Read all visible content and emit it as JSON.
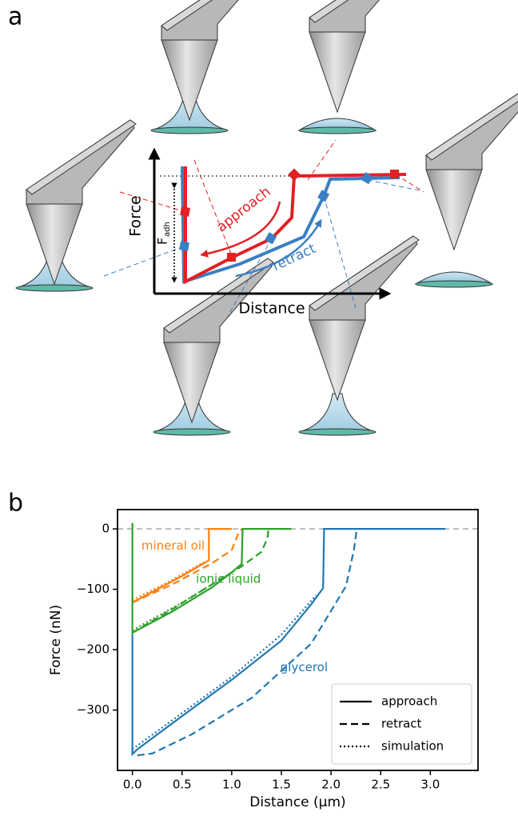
{
  "panel_a": {
    "label": "a",
    "y_axis": "Force",
    "x_axis": "Distance",
    "adhesion": {
      "symbol": "F",
      "subscript": "adh"
    },
    "approach": "approach",
    "retract": "retract"
  },
  "panel_b_label": "b",
  "chart_data": {
    "type": "line",
    "xlabel": "Distance (µm)",
    "ylabel": "Force (nN)",
    "xlim": [
      -0.15,
      3.48
    ],
    "ylim": [
      -400,
      32
    ],
    "xticks": [
      {
        "value": 0,
        "label": "0.0"
      },
      0.5,
      {
        "value": 1,
        "label": "1.0"
      },
      1.5,
      {
        "value": 2,
        "label": "2.0"
      },
      2.5,
      {
        "value": 3,
        "label": "3.0"
      }
    ],
    "yticks": [
      0,
      {
        "value": -100,
        "label": "−100"
      },
      {
        "value": -200,
        "label": "−200"
      },
      {
        "value": -300,
        "label": "−300"
      }
    ],
    "zero_line": true,
    "legend_position": "lower right",
    "styles": [
      {
        "name": "approach",
        "dash": "solid"
      },
      {
        "name": "retract",
        "dash": "dashed"
      },
      {
        "name": "simulation",
        "dash": "dotted"
      }
    ],
    "groups": [
      {
        "name": "mineral oil",
        "color": "#ff7f0e",
        "approach": {
          "x": [
            1.0,
            0.77,
            0.77,
            0.5,
            0.25,
            0
          ],
          "y": [
            0,
            0,
            -52,
            -78,
            -100,
            -122
          ]
        },
        "retract": {
          "x": [
            0,
            0.4,
            0.8,
            1.0,
            1.06,
            1.1
          ],
          "y": [
            -122,
            -92,
            -57,
            -35,
            -10,
            0
          ]
        },
        "simulation": {
          "x": [
            0,
            0.36,
            0.72
          ],
          "y": [
            -118,
            -88,
            -55
          ]
        }
      },
      {
        "name": "ionic liquid",
        "color": "#2ca02c",
        "approach": {
          "x": [
            1.6,
            1.11,
            1.1,
            1.0,
            0.8,
            0.4,
            0,
            0,
            0
          ],
          "y": [
            0,
            0,
            -58,
            -72,
            -97,
            -137,
            -172,
            -175,
            10
          ]
        },
        "retract": {
          "x": [
            0,
            0.4,
            0.8,
            1.1,
            1.3,
            1.36,
            1.37
          ],
          "y": [
            -172,
            -133,
            -92,
            -62,
            -38,
            -15,
            0
          ]
        },
        "simulation": {
          "x": [
            0,
            0.5,
            1.0
          ],
          "y": [
            -168,
            -122,
            -72
          ]
        }
      },
      {
        "name": "glycerol",
        "color": "#1f77b4",
        "approach": {
          "x": [
            3.15,
            1.93,
            1.92,
            1.8,
            1.5,
            1.0,
            0.5,
            0.05,
            0,
            0
          ],
          "y": [
            0,
            0,
            -98,
            -125,
            -185,
            -250,
            -310,
            -365,
            -373,
            -175
          ]
        },
        "retract": {
          "x": [
            0.05,
            0.2,
            0.6,
            1.2,
            1.8,
            2.15,
            2.23,
            2.26
          ],
          "y": [
            -375,
            -372,
            -340,
            -280,
            -190,
            -95,
            -35,
            0
          ]
        },
        "simulation": {
          "x": [
            0,
            0.5,
            1.0,
            1.5,
            1.85
          ],
          "y": [
            -365,
            -305,
            -245,
            -175,
            -110
          ]
        }
      }
    ]
  }
}
